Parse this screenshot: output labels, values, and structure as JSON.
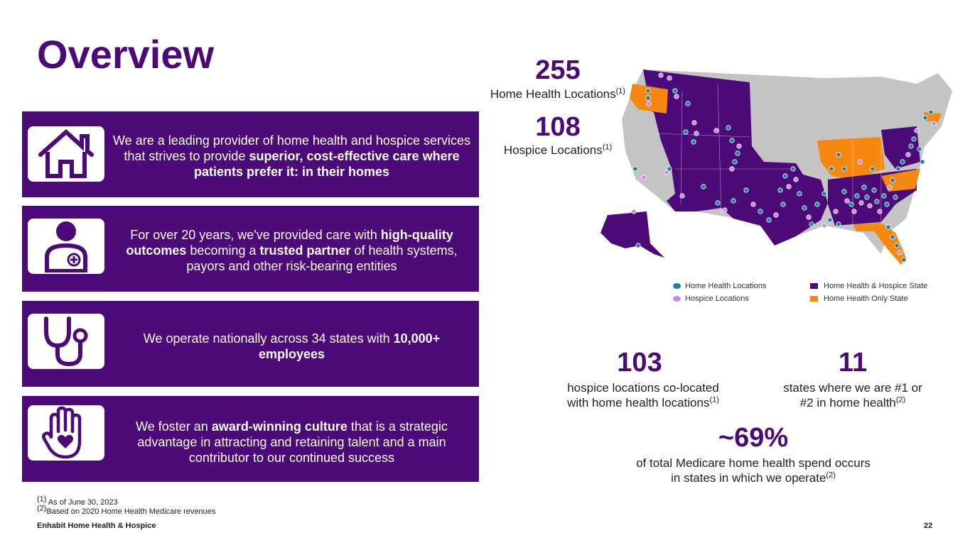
{
  "title": "Overview",
  "boxes": [
    {
      "icon": "house-icon",
      "parts": [
        {
          "t": "We are a leading provider of home health and hospice services that strives to provide ",
          "b": false
        },
        {
          "t": "superior, cost-effective care where patients prefer it: in their homes",
          "b": true
        }
      ]
    },
    {
      "icon": "doctor-icon",
      "parts": [
        {
          "t": "For over 20 years, we've provided care with ",
          "b": false
        },
        {
          "t": "high-quality outcomes",
          "b": true
        },
        {
          "t": " becoming a ",
          "b": false
        },
        {
          "t": "trusted partner",
          "b": true
        },
        {
          "t": " of health systems, payors and other risk-bearing entities",
          "b": false
        }
      ]
    },
    {
      "icon": "stethoscope-icon",
      "parts": [
        {
          "t": "We operate nationally across 34 states with ",
          "b": false
        },
        {
          "t": "10,000+ employees",
          "b": true
        }
      ]
    },
    {
      "icon": "hand-heart-icon",
      "parts": [
        {
          "t": "We foster an ",
          "b": false
        },
        {
          "t": "award-winning culture",
          "b": true
        },
        {
          "t": " that is a strategic advantage in attracting and retaining talent and a main contributor to our continued success",
          "b": false
        }
      ]
    }
  ],
  "stats": {
    "home_health": {
      "value": "255",
      "label": "Home Health Locations",
      "sup": "(1)"
    },
    "hospice": {
      "value": "108",
      "label": "Hospice Locations",
      "sup": "(1)"
    },
    "colocated": {
      "value": "103",
      "line1": "hospice locations co-located",
      "line2": "with home health locations",
      "sup": "(1)"
    },
    "states_rank": {
      "value": "11",
      "line1": "states where we are #1 or",
      "line2": "#2 in home health",
      "sup": "(2)"
    },
    "medicare": {
      "value": "~69%",
      "line1": "of total Medicare home health spend occurs",
      "line2": "in states in which we operate",
      "sup": "(2)"
    }
  },
  "map": {
    "colors": {
      "both": "#4b0a78",
      "home_only": "#f7880f",
      "none": "#c4c4c4",
      "hh_dot": "#1f7fa0",
      "hospice_dot": "#c88be0"
    },
    "legend": {
      "home_health_locations": "Home Health Locations",
      "hospice_locations": "Hospice Locations",
      "hh_hospice_state": "Home Health & Hospice State",
      "hh_only_state": "Home Health Only State"
    }
  },
  "footnotes": {
    "f1_sup": "(1)",
    "f1": "As of June 30, 2023",
    "f2_sup": "(2)",
    "f2": "Based on 2020 Home Health Medicare revenues"
  },
  "footer": {
    "company": "Enhabit Home Health & Hospice",
    "page": "22"
  }
}
